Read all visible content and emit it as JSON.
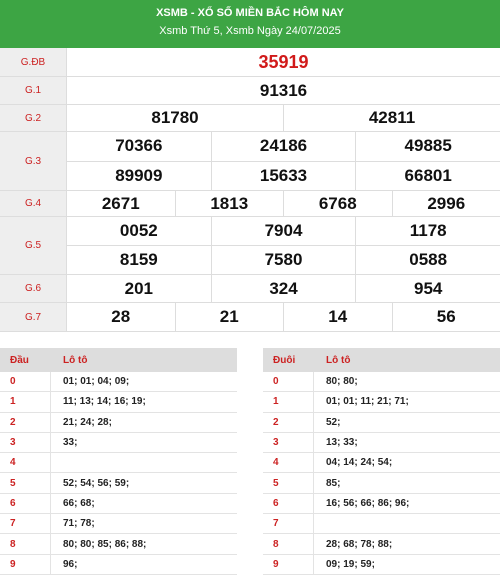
{
  "header": {
    "title": "XSMB - XỔ SỐ MIỀN BẮC HÔM NAY",
    "subtitle": "Xsmb Thứ 5, Xsmb Ngày 24/07/2025"
  },
  "prizes": [
    {
      "label": "G.ĐB",
      "rows": [
        [
          "35919"
        ]
      ]
    },
    {
      "label": "G.1",
      "rows": [
        [
          "91316"
        ]
      ]
    },
    {
      "label": "G.2",
      "rows": [
        [
          "81780",
          "42811"
        ]
      ]
    },
    {
      "label": "G.3",
      "rows": [
        [
          "70366",
          "24186",
          "49885"
        ],
        [
          "89909",
          "15633",
          "66801"
        ]
      ]
    },
    {
      "label": "G.4",
      "rows": [
        [
          "2671",
          "1813",
          "6768",
          "2996"
        ]
      ]
    },
    {
      "label": "G.5",
      "rows": [
        [
          "0052",
          "7904",
          "1178"
        ],
        [
          "8159",
          "7580",
          "0588"
        ]
      ]
    },
    {
      "label": "G.6",
      "rows": [
        [
          "201",
          "324",
          "954"
        ]
      ]
    },
    {
      "label": "G.7",
      "rows": [
        [
          "28",
          "21",
          "14",
          "56"
        ]
      ]
    }
  ],
  "loto_head": {
    "head_label": "Đầu",
    "value_label": "Lô tô",
    "rows": [
      {
        "key": "0",
        "value": "01; 01; 04; 09;"
      },
      {
        "key": "1",
        "value": "11; 13; 14; 16; 19;"
      },
      {
        "key": "2",
        "value": "21; 24; 28;"
      },
      {
        "key": "3",
        "value": "33;"
      },
      {
        "key": "4",
        "value": ""
      },
      {
        "key": "5",
        "value": "52; 54; 56; 59;"
      },
      {
        "key": "6",
        "value": "66; 68;"
      },
      {
        "key": "7",
        "value": "71; 78;"
      },
      {
        "key": "8",
        "value": "80; 80; 85; 86; 88;"
      },
      {
        "key": "9",
        "value": "96;"
      }
    ]
  },
  "loto_tail": {
    "head_label": "Đuôi",
    "value_label": "Lô tô",
    "rows": [
      {
        "key": "0",
        "value": "80; 80;"
      },
      {
        "key": "1",
        "value": "01; 01; 11; 21; 71;"
      },
      {
        "key": "2",
        "value": "52;"
      },
      {
        "key": "3",
        "value": "13; 33;"
      },
      {
        "key": "4",
        "value": "04; 14; 24; 54;"
      },
      {
        "key": "5",
        "value": "85;"
      },
      {
        "key": "6",
        "value": "16; 56; 66; 86; 96;"
      },
      {
        "key": "7",
        "value": ""
      },
      {
        "key": "8",
        "value": "28; 68; 78; 88;"
      },
      {
        "key": "9",
        "value": "09; 19; 59;"
      }
    ]
  },
  "colors": {
    "header_bg": "#3da544",
    "label_red": "#cc2222",
    "special_red": "#d11a1a"
  }
}
